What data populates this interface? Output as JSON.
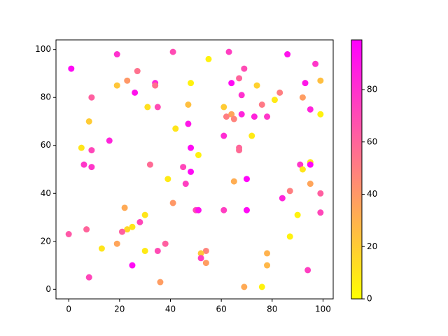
{
  "chart_data": {
    "type": "scatter",
    "x": [
      1,
      19,
      41,
      63,
      86,
      55,
      97,
      27,
      69,
      23,
      67,
      99,
      19,
      34,
      34,
      48,
      64,
      74,
      93,
      26,
      83,
      9,
      68,
      92,
      81,
      31,
      35,
      47,
      61,
      76,
      95,
      68,
      64,
      99,
      62,
      73,
      78,
      65,
      8,
      47,
      42,
      72,
      61,
      16,
      5,
      48,
      67,
      67,
      9,
      51,
      6,
      9,
      32,
      45,
      91,
      95,
      95,
      92,
      48,
      39,
      65,
      70,
      46,
      95,
      87,
      99,
      84,
      41,
      22,
      50,
      51,
      61,
      70,
      99,
      30,
      90,
      28,
      25,
      23,
      21,
      7,
      0,
      87,
      38,
      19,
      13,
      30,
      35,
      54,
      52,
      52,
      78,
      54,
      25,
      78,
      94,
      8,
      36,
      69,
      76
    ],
    "y": [
      92,
      98,
      99,
      99,
      98,
      96,
      94,
      91,
      92,
      87,
      88,
      87,
      85,
      86,
      85,
      86,
      86,
      85,
      86,
      82,
      82,
      80,
      81,
      80,
      79,
      76,
      76,
      77,
      76,
      77,
      75,
      73,
      73,
      73,
      72,
      72,
      72,
      71,
      70,
      69,
      67,
      64,
      64,
      62,
      59,
      59,
      59,
      58,
      58,
      56,
      52,
      51,
      52,
      51,
      52,
      53,
      52,
      50,
      49,
      46,
      45,
      46,
      44,
      44,
      41,
      40,
      38,
      36,
      34,
      33,
      33,
      33,
      33,
      32,
      31,
      31,
      28,
      26,
      25,
      24,
      25,
      23,
      22,
      19,
      19,
      17,
      16,
      16,
      16,
      15,
      13,
      15,
      11,
      10,
      10,
      8,
      5,
      3,
      1,
      1
    ],
    "c": [
      95,
      80,
      70,
      75,
      92,
      5,
      78,
      55,
      70,
      40,
      60,
      25,
      22,
      85,
      55,
      5,
      95,
      18,
      90,
      92,
      50,
      62,
      80,
      38,
      8,
      12,
      70,
      25,
      20,
      52,
      85,
      85,
      35,
      5,
      50,
      85,
      78,
      48,
      20,
      90,
      10,
      8,
      82,
      85,
      10,
      95,
      60,
      58,
      72,
      5,
      78,
      78,
      58,
      72,
      78,
      10,
      97,
      10,
      95,
      8,
      32,
      97,
      75,
      35,
      50,
      62,
      85,
      40,
      33,
      70,
      92,
      75,
      95,
      72,
      10,
      5,
      72,
      10,
      15,
      62,
      60,
      65,
      5,
      62,
      35,
      10,
      8,
      70,
      48,
      22,
      75,
      30,
      38,
      95,
      28,
      75,
      72,
      38,
      33,
      5
    ],
    "cmap": [
      "#ffff00",
      "#ff00ff"
    ],
    "clim": [
      0,
      99
    ],
    "cticks": [
      0,
      20,
      40,
      60,
      80
    ],
    "xlim": [
      -5,
      104
    ],
    "ylim": [
      -4,
      104
    ],
    "xticks": [
      0,
      20,
      40,
      60,
      80,
      100
    ],
    "yticks": [
      0,
      20,
      40,
      60,
      80,
      100
    ]
  }
}
